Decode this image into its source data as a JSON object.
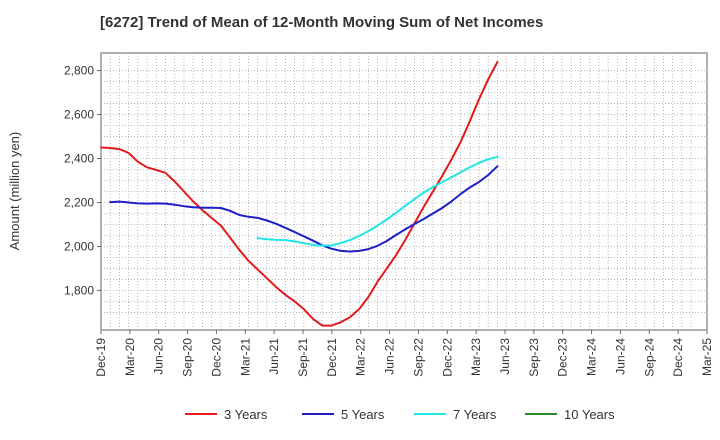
{
  "chart_data": {
    "type": "line",
    "title": "[6272]  Trend of Mean of 12-Month Moving Sum of Net Incomes",
    "xlabel": "",
    "ylabel": "Amount (million yen)",
    "x_ticks": [
      "Dec-19",
      "Mar-20",
      "Jun-20",
      "Sep-20",
      "Dec-20",
      "Mar-21",
      "Jun-21",
      "Sep-21",
      "Dec-21",
      "Mar-22",
      "Jun-22",
      "Sep-22",
      "Dec-22",
      "Mar-23",
      "Jun-23",
      "Sep-23",
      "Dec-23",
      "Mar-24",
      "Jun-24",
      "Sep-24",
      "Dec-24",
      "Mar-25"
    ],
    "y_ticks": [
      1800,
      2000,
      2200,
      2400,
      2600,
      2800
    ],
    "y_tick_labels": [
      "1,800",
      "2,000",
      "2,200",
      "2,400",
      "2,600",
      "2,800"
    ],
    "ylim": [
      1620,
      2880
    ],
    "grid": true,
    "legend_position": "bottom",
    "series": [
      {
        "name": "3 Years",
        "color": "#e31a1c",
        "points": [
          [
            0,
            2450
          ],
          [
            1,
            2448
          ],
          [
            2,
            2443
          ],
          [
            3,
            2425
          ],
          [
            4,
            2385
          ],
          [
            5,
            2360
          ],
          [
            6,
            2348
          ],
          [
            7,
            2335
          ],
          [
            8,
            2295
          ],
          [
            9,
            2250
          ],
          [
            10,
            2205
          ],
          [
            11,
            2165
          ],
          [
            12,
            2130
          ],
          [
            13,
            2095
          ],
          [
            14,
            2040
          ],
          [
            15,
            1985
          ],
          [
            16,
            1935
          ],
          [
            17,
            1895
          ],
          [
            18,
            1855
          ],
          [
            19,
            1815
          ],
          [
            20,
            1780
          ],
          [
            21,
            1750
          ],
          [
            22,
            1715
          ],
          [
            23,
            1670
          ],
          [
            24,
            1640
          ],
          [
            25,
            1640
          ],
          [
            26,
            1655
          ],
          [
            27,
            1678
          ],
          [
            28,
            1715
          ],
          [
            29,
            1770
          ],
          [
            30,
            1840
          ],
          [
            31,
            1900
          ],
          [
            32,
            1960
          ],
          [
            33,
            2030
          ],
          [
            34,
            2105
          ],
          [
            35,
            2180
          ],
          [
            36,
            2250
          ],
          [
            37,
            2320
          ],
          [
            38,
            2395
          ],
          [
            39,
            2475
          ],
          [
            40,
            2570
          ],
          [
            41,
            2670
          ],
          [
            42,
            2760
          ],
          [
            43,
            2840
          ]
        ]
      },
      {
        "name": "5 Years",
        "color": "#1f1fc8",
        "points": [
          [
            1,
            2202
          ],
          [
            2,
            2204
          ],
          [
            3,
            2200
          ],
          [
            4,
            2196
          ],
          [
            5,
            2195
          ],
          [
            6,
            2196
          ],
          [
            7,
            2195
          ],
          [
            8,
            2190
          ],
          [
            9,
            2183
          ],
          [
            10,
            2178
          ],
          [
            11,
            2176
          ],
          [
            12,
            2176
          ],
          [
            13,
            2175
          ],
          [
            14,
            2162
          ],
          [
            15,
            2143
          ],
          [
            16,
            2135
          ],
          [
            17,
            2130
          ],
          [
            18,
            2118
          ],
          [
            19,
            2103
          ],
          [
            20,
            2085
          ],
          [
            21,
            2066
          ],
          [
            22,
            2046
          ],
          [
            23,
            2026
          ],
          [
            24,
            2005
          ],
          [
            25,
            1990
          ],
          [
            26,
            1980
          ],
          [
            27,
            1977
          ],
          [
            28,
            1980
          ],
          [
            29,
            1988
          ],
          [
            30,
            2003
          ],
          [
            31,
            2025
          ],
          [
            32,
            2052
          ],
          [
            33,
            2078
          ],
          [
            34,
            2102
          ],
          [
            35,
            2125
          ],
          [
            36,
            2150
          ],
          [
            37,
            2175
          ],
          [
            38,
            2205
          ],
          [
            39,
            2238
          ],
          [
            40,
            2268
          ],
          [
            41,
            2293
          ],
          [
            42,
            2325
          ],
          [
            43,
            2365
          ]
        ]
      },
      {
        "name": "7 Years",
        "color": "#22e6e6",
        "points": [
          [
            17,
            2038
          ],
          [
            18,
            2033
          ],
          [
            19,
            2030
          ],
          [
            20,
            2029
          ],
          [
            21,
            2023
          ],
          [
            22,
            2015
          ],
          [
            23,
            2007
          ],
          [
            24,
            2003
          ],
          [
            25,
            2005
          ],
          [
            26,
            2015
          ],
          [
            27,
            2030
          ],
          [
            28,
            2048
          ],
          [
            29,
            2070
          ],
          [
            30,
            2095
          ],
          [
            31,
            2123
          ],
          [
            32,
            2153
          ],
          [
            33,
            2185
          ],
          [
            34,
            2215
          ],
          [
            35,
            2245
          ],
          [
            36,
            2270
          ],
          [
            37,
            2292
          ],
          [
            38,
            2315
          ],
          [
            39,
            2337
          ],
          [
            40,
            2360
          ],
          [
            41,
            2380
          ],
          [
            42,
            2397
          ],
          [
            43,
            2408
          ]
        ]
      },
      {
        "name": "10 Years",
        "color": "#2a8a2a",
        "points": []
      }
    ]
  }
}
